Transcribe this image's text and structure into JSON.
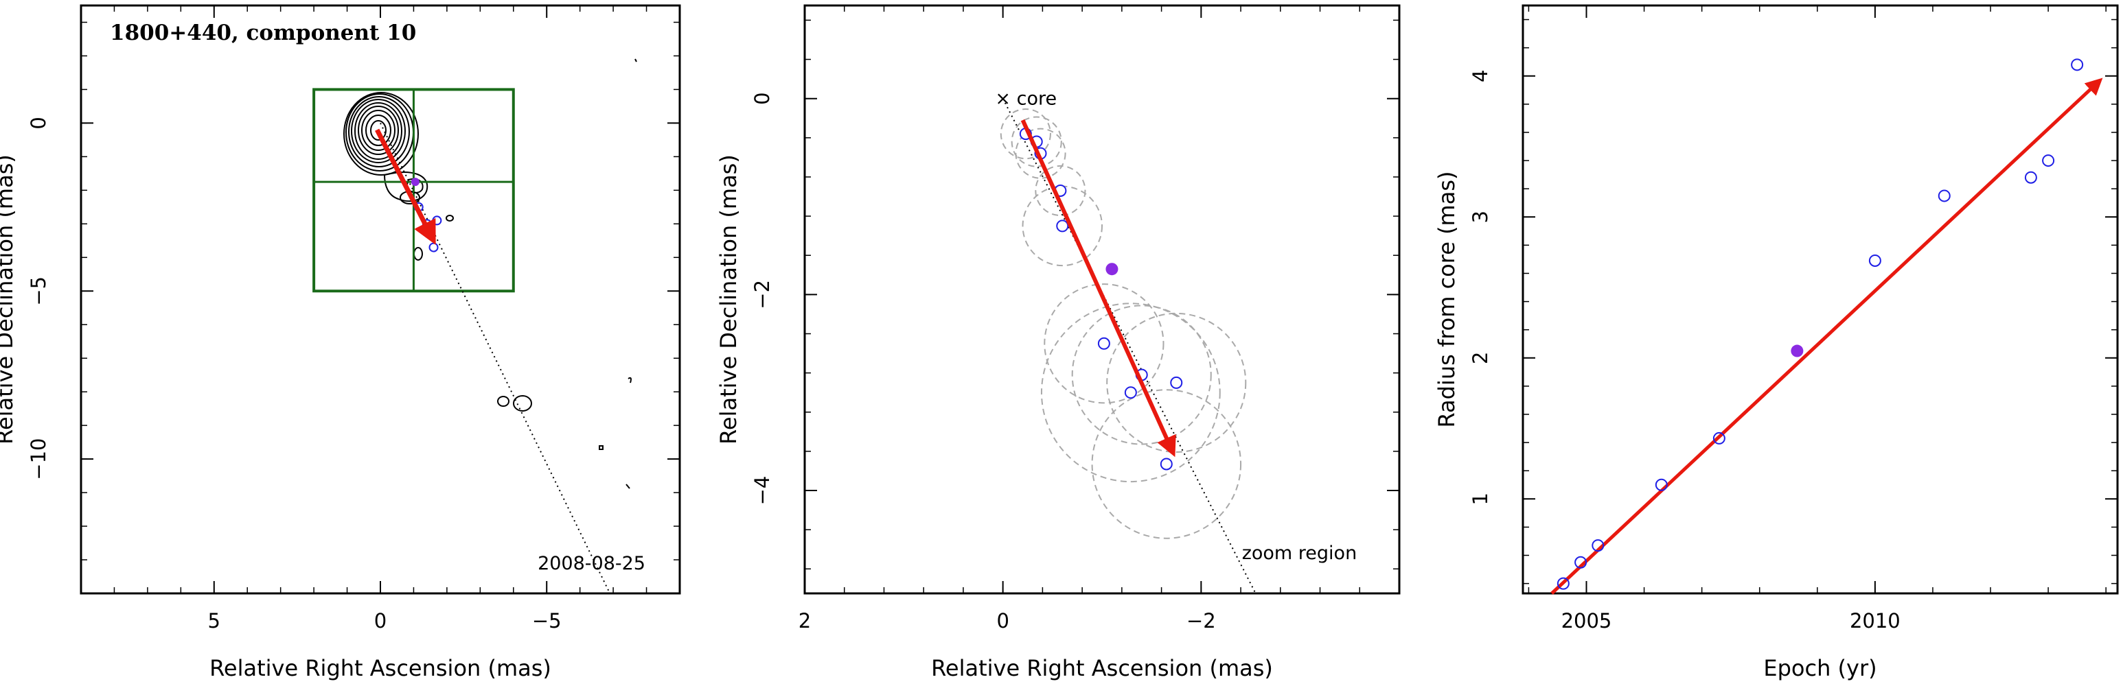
{
  "chart_data": [
    {
      "type": "scatter",
      "panel": "map",
      "title": "1800+440, component 10",
      "date_label": "2008-08-25",
      "xlabel": "Relative Right Ascension (mas)",
      "ylabel": "Relative Declination (mas)",
      "xlim": [
        9,
        -9
      ],
      "ylim": [
        -14,
        3.5
      ],
      "x_reversed": true,
      "xticks": [
        5,
        0,
        -5
      ],
      "yticks": [
        0,
        -5,
        -10
      ],
      "xtick_labels": [
        "5",
        "0",
        "−5"
      ],
      "ytick_labels": [
        "0",
        "−5",
        "−10"
      ],
      "zoom_box": {
        "x": [
          2,
          -4
        ],
        "y": [
          1,
          -5
        ]
      },
      "zoom_box_divisions": {
        "x": -1,
        "y": -1.75
      },
      "track_line": {
        "from": [
          0,
          0
        ],
        "to": [
          -6.9,
          -14
        ]
      },
      "motion_arrow": {
        "from": [
          0.1,
          -0.2
        ],
        "to": [
          -1.6,
          -3.5
        ]
      },
      "positions": [
        {
          "x": -1.15,
          "y": -2.5
        },
        {
          "x": -1.4,
          "y": -3.0
        },
        {
          "x": -1.7,
          "y": -2.9
        },
        {
          "x": -1.6,
          "y": -3.7
        }
      ],
      "highlighted_position": {
        "x": -1.05,
        "y": -1.75
      },
      "colors": {
        "zoom_box": "#1a6b1a",
        "arrow": "#e8190f",
        "points": "#1f1fe6",
        "highlight": "#8a2be2"
      }
    },
    {
      "type": "scatter",
      "panel": "zoom",
      "xlabel": "Relative Right Ascension (mas)",
      "ylabel": "Relative Declination (mas)",
      "xlim": [
        2,
        -4
      ],
      "ylim": [
        -5.05,
        0.95
      ],
      "x_reversed": true,
      "xticks": [
        2,
        0,
        -2
      ],
      "yticks": [
        0,
        -2,
        -4
      ],
      "xtick_labels": [
        "2",
        "0",
        "−2"
      ],
      "ytick_labels": [
        "0",
        "−2",
        "−4"
      ],
      "core_label": "core",
      "zoom_label": "zoom region",
      "track_line": {
        "from": [
          0,
          0
        ],
        "to": [
          -2.55,
          -5.05
        ]
      },
      "motion_arrow": {
        "from": [
          -0.2,
          -0.22
        ],
        "to": [
          -1.72,
          -3.62
        ]
      },
      "positions": [
        {
          "x": -0.23,
          "y": -0.36,
          "r": 0.25
        },
        {
          "x": -0.34,
          "y": -0.44,
          "r": 0.25
        },
        {
          "x": -0.38,
          "y": -0.56,
          "r": 0.25
        },
        {
          "x": -0.58,
          "y": -0.94,
          "r": 0.25
        },
        {
          "x": -0.6,
          "y": -1.3,
          "r": 0.4
        },
        {
          "x": -1.02,
          "y": -2.5,
          "r": 0.6
        },
        {
          "x": -1.4,
          "y": -2.82,
          "r": 0.7
        },
        {
          "x": -1.29,
          "y": -3.0,
          "r": 0.9
        },
        {
          "x": -1.75,
          "y": -2.9,
          "r": 0.7
        },
        {
          "x": -1.65,
          "y": -3.73,
          "r": 0.75
        }
      ],
      "highlighted_position": {
        "x": -1.1,
        "y": -1.74
      },
      "colors": {
        "arrow": "#e8190f",
        "points": "#1f1fe6",
        "highlight": "#8a2be2",
        "circles": "#a9a9a9"
      }
    },
    {
      "type": "scatter",
      "panel": "radius",
      "xlabel": "Epoch (yr)",
      "ylabel": "Radius from core (mas)",
      "xlim": [
        2003.9,
        2014.2
      ],
      "ylim": [
        0.33,
        4.5
      ],
      "xticks": [
        2005,
        2010
      ],
      "yticks": [
        1,
        2,
        3,
        4
      ],
      "xtick_labels": [
        "2005",
        "2010"
      ],
      "ytick_labels": [
        "1",
        "2",
        "3",
        "4"
      ],
      "x": [
        2004.6,
        2004.9,
        2005.2,
        2006.3,
        2007.3,
        2010.0,
        2011.2,
        2012.7,
        2013.0,
        2013.5
      ],
      "y": [
        0.4,
        0.55,
        0.67,
        1.1,
        1.43,
        2.69,
        3.15,
        3.28,
        3.4,
        4.08
      ],
      "highlighted_point": {
        "x": 2008.65,
        "y": 2.05
      },
      "fit_arrow": {
        "from": [
          2004.4,
          0.33
        ],
        "to": [
          2013.9,
          3.97
        ]
      },
      "colors": {
        "arrow": "#e8190f",
        "points": "#1f1fe6",
        "highlight": "#8a2be2"
      }
    }
  ]
}
